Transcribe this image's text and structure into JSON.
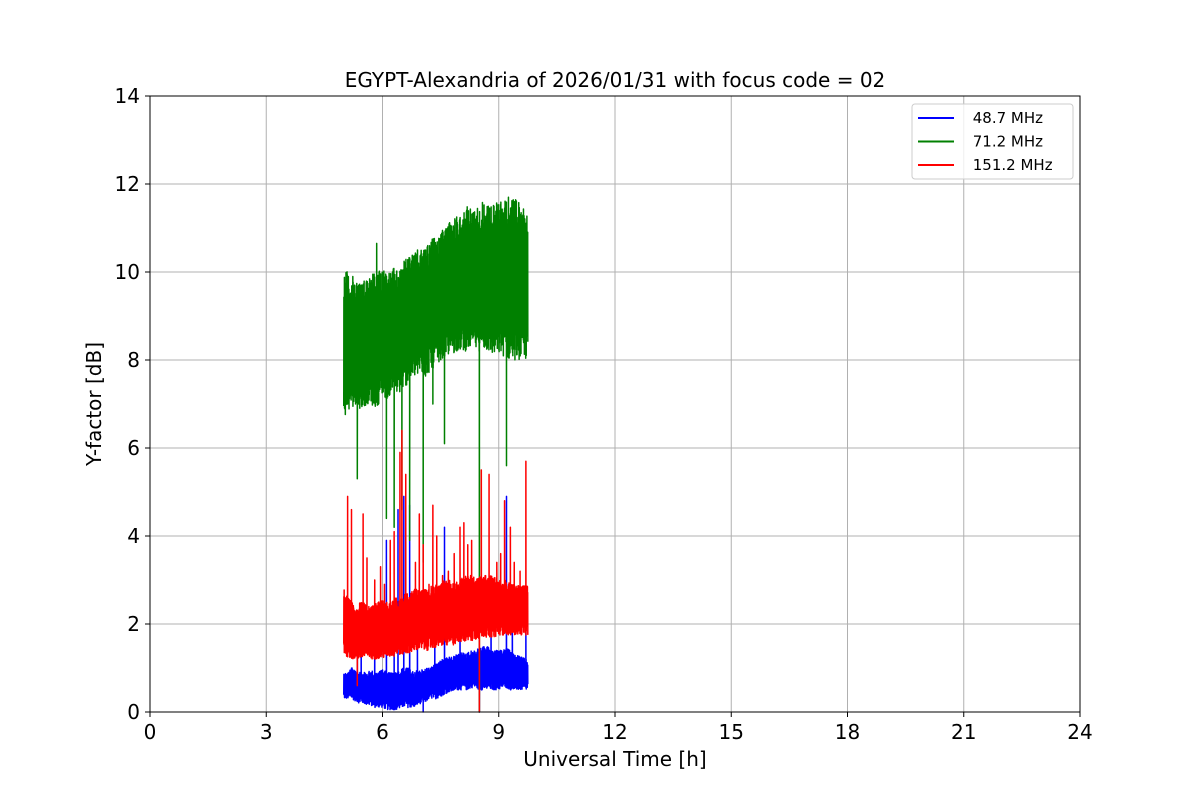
{
  "chart_data": {
    "type": "line",
    "title": "EGYPT-Alexandria of 2026/01/31 with focus code = 02",
    "xlabel": "Universal Time [h]",
    "ylabel": "Y-factor [dB]",
    "xlim": [
      0,
      24
    ],
    "ylim": [
      0,
      14
    ],
    "xticks": [
      0,
      3,
      6,
      9,
      12,
      15,
      18,
      21,
      24
    ],
    "yticks": [
      0,
      2,
      4,
      6,
      8,
      10,
      12,
      14
    ],
    "grid": true,
    "legend_position": "top-right",
    "series": [
      {
        "name": " 48.7 MHz",
        "color": "#0000ff",
        "x": [
          5.0,
          5.1,
          5.2,
          5.3,
          5.4,
          5.5,
          5.6,
          5.7,
          5.8,
          5.9,
          6.0,
          6.1,
          6.2,
          6.3,
          6.4,
          6.5,
          6.6,
          6.7,
          6.8,
          6.9,
          7.0,
          7.1,
          7.2,
          7.3,
          7.4,
          7.5,
          7.6,
          7.7,
          7.8,
          7.9,
          8.0,
          8.1,
          8.2,
          8.3,
          8.4,
          8.5,
          8.6,
          8.7,
          8.8,
          8.9,
          9.0,
          9.1,
          9.2,
          9.3,
          9.4,
          9.5,
          9.6,
          9.7,
          9.75
        ],
        "low": [
          0.3,
          0.3,
          0.3,
          0.25,
          0.2,
          0.2,
          0.15,
          0.15,
          0.1,
          0.1,
          0.1,
          0.05,
          0.05,
          0.05,
          0.05,
          0.1,
          0.1,
          0.1,
          0.1,
          0.15,
          0.2,
          0.2,
          0.3,
          0.3,
          0.3,
          0.35,
          0.4,
          0.45,
          0.45,
          0.5,
          0.5,
          0.5,
          0.5,
          0.55,
          0.55,
          0.5,
          0.5,
          0.5,
          0.5,
          0.5,
          0.5,
          0.55,
          0.55,
          0.5,
          0.5,
          0.5,
          0.5,
          0.5,
          0.5
        ],
        "high": [
          0.9,
          0.9,
          1.0,
          1.0,
          0.9,
          0.9,
          0.9,
          0.95,
          0.9,
          0.9,
          1.0,
          0.9,
          0.9,
          0.9,
          0.9,
          1.0,
          1.0,
          1.0,
          0.9,
          0.95,
          0.95,
          1.0,
          1.0,
          1.05,
          1.1,
          1.2,
          1.2,
          1.25,
          1.25,
          1.3,
          1.35,
          1.35,
          1.35,
          1.4,
          1.4,
          1.45,
          1.5,
          1.5,
          1.45,
          1.4,
          1.4,
          1.4,
          1.45,
          1.4,
          1.3,
          1.3,
          1.25,
          1.2,
          1.2
        ],
        "spikes": [
          [
            5.35,
            2.3
          ],
          [
            5.45,
            1.8
          ],
          [
            5.8,
            1.6
          ],
          [
            6.1,
            3.9
          ],
          [
            6.3,
            1.8
          ],
          [
            6.4,
            4.6
          ],
          [
            6.55,
            4.9
          ],
          [
            6.7,
            4.7
          ],
          [
            6.9,
            1.9
          ],
          [
            7.05,
            0.0
          ],
          [
            7.35,
            1.9
          ],
          [
            7.6,
            4.2
          ],
          [
            8.0,
            2.4
          ],
          [
            8.5,
            0.0
          ],
          [
            8.8,
            2.5
          ],
          [
            9.2,
            4.9
          ],
          [
            9.35,
            2.3
          ],
          [
            9.7,
            2.0
          ]
        ]
      },
      {
        "name": " 71.2 MHz",
        "color": "#008000",
        "x": [
          5.0,
          5.1,
          5.2,
          5.3,
          5.4,
          5.5,
          5.6,
          5.7,
          5.8,
          5.9,
          6.0,
          6.1,
          6.2,
          6.3,
          6.4,
          6.5,
          6.6,
          6.7,
          6.8,
          6.9,
          7.0,
          7.1,
          7.2,
          7.3,
          7.4,
          7.5,
          7.6,
          7.7,
          7.8,
          7.9,
          8.0,
          8.1,
          8.2,
          8.3,
          8.4,
          8.5,
          8.6,
          8.7,
          8.8,
          8.9,
          9.0,
          9.1,
          9.2,
          9.3,
          9.4,
          9.5,
          9.6,
          9.7,
          9.75
        ],
        "low": [
          6.7,
          6.8,
          6.9,
          7.0,
          6.9,
          6.9,
          7.0,
          7.0,
          6.9,
          7.0,
          7.2,
          7.1,
          7.2,
          7.3,
          7.2,
          7.3,
          7.4,
          7.5,
          7.6,
          7.6,
          7.7,
          7.6,
          7.7,
          7.8,
          7.9,
          8.0,
          8.0,
          8.1,
          8.1,
          8.2,
          8.2,
          8.2,
          8.2,
          8.3,
          8.2,
          8.2,
          8.2,
          8.2,
          8.1,
          8.1,
          8.1,
          8.1,
          8.0,
          8.0,
          8.0,
          8.0,
          8.0,
          8.0,
          8.0
        ],
        "high": [
          10.1,
          10.0,
          9.9,
          9.9,
          9.8,
          9.8,
          9.9,
          10.0,
          10.0,
          10.0,
          10.2,
          10.0,
          10.0,
          10.1,
          10.0,
          10.2,
          10.3,
          10.4,
          10.4,
          10.5,
          10.5,
          10.6,
          10.7,
          10.8,
          10.7,
          10.9,
          11.0,
          11.1,
          11.2,
          11.3,
          11.3,
          11.4,
          11.5,
          11.5,
          11.4,
          11.6,
          11.6,
          11.6,
          11.5,
          11.6,
          11.6,
          11.7,
          11.6,
          11.6,
          11.7,
          11.6,
          11.5,
          11.5,
          11.4
        ],
        "spikes": [
          [
            5.35,
            5.3
          ],
          [
            5.85,
            10.65
          ],
          [
            6.1,
            4.4
          ],
          [
            6.3,
            4.2
          ],
          [
            6.5,
            4.6
          ],
          [
            6.7,
            3.9
          ],
          [
            7.05,
            3.4
          ],
          [
            7.3,
            7.0
          ],
          [
            7.6,
            6.1
          ],
          [
            8.5,
            0.0
          ],
          [
            9.2,
            5.6
          ],
          [
            9.25,
            11.7
          ]
        ]
      },
      {
        "name": " 151.2 MHz",
        "color": "#ff0000",
        "x": [
          5.0,
          5.1,
          5.2,
          5.3,
          5.4,
          5.5,
          5.6,
          5.7,
          5.8,
          5.9,
          6.0,
          6.1,
          6.2,
          6.3,
          6.4,
          6.5,
          6.6,
          6.7,
          6.8,
          6.9,
          7.0,
          7.1,
          7.2,
          7.3,
          7.4,
          7.5,
          7.6,
          7.7,
          7.8,
          7.9,
          8.0,
          8.1,
          8.2,
          8.3,
          8.4,
          8.5,
          8.6,
          8.7,
          8.8,
          8.9,
          9.0,
          9.1,
          9.2,
          9.3,
          9.4,
          9.5,
          9.6,
          9.7,
          9.75
        ],
        "low": [
          1.3,
          1.25,
          1.2,
          1.2,
          1.2,
          1.2,
          1.2,
          1.2,
          1.2,
          1.2,
          1.2,
          1.25,
          1.25,
          1.25,
          1.3,
          1.3,
          1.3,
          1.35,
          1.35,
          1.4,
          1.4,
          1.4,
          1.4,
          1.45,
          1.45,
          1.5,
          1.5,
          1.5,
          1.5,
          1.55,
          1.6,
          1.6,
          1.6,
          1.6,
          1.65,
          1.65,
          1.7,
          1.7,
          1.7,
          1.7,
          1.75,
          1.75,
          1.75,
          1.75,
          1.75,
          1.75,
          1.75,
          1.75,
          1.7
        ],
        "high": [
          2.9,
          2.6,
          2.5,
          2.4,
          2.5,
          2.5,
          2.4,
          2.4,
          2.5,
          2.5,
          2.6,
          2.5,
          2.5,
          2.6,
          2.6,
          2.6,
          2.7,
          2.7,
          2.8,
          2.8,
          2.8,
          2.8,
          2.8,
          2.9,
          2.9,
          2.9,
          3.0,
          3.0,
          3.0,
          3.0,
          3.0,
          3.1,
          3.1,
          3.1,
          3.1,
          3.1,
          3.1,
          3.1,
          3.1,
          3.1,
          3.0,
          3.0,
          3.0,
          2.9,
          2.9,
          2.9,
          2.9,
          2.9,
          2.9
        ],
        "spikes": [
          [
            5.1,
            4.9
          ],
          [
            5.2,
            4.6
          ],
          [
            5.35,
            0.6
          ],
          [
            5.5,
            4.5
          ],
          [
            5.6,
            3.5
          ],
          [
            5.8,
            3.0
          ],
          [
            5.95,
            3.3
          ],
          [
            6.05,
            2.9
          ],
          [
            6.2,
            3.9
          ],
          [
            6.3,
            4.1
          ],
          [
            6.45,
            5.9
          ],
          [
            6.5,
            6.4
          ],
          [
            6.6,
            5.4
          ],
          [
            6.7,
            2.0
          ],
          [
            6.85,
            3.4
          ],
          [
            6.95,
            4.5
          ],
          [
            7.05,
            3.8
          ],
          [
            7.2,
            2.9
          ],
          [
            7.3,
            4.7
          ],
          [
            7.4,
            4.0
          ],
          [
            7.55,
            3.1
          ],
          [
            7.7,
            3.2
          ],
          [
            7.85,
            3.6
          ],
          [
            8.0,
            4.2
          ],
          [
            8.1,
            4.3
          ],
          [
            8.2,
            3.8
          ],
          [
            8.3,
            3.9
          ],
          [
            8.5,
            0.0
          ],
          [
            8.55,
            5.5
          ],
          [
            8.75,
            5.4
          ],
          [
            8.95,
            3.4
          ],
          [
            9.05,
            3.6
          ],
          [
            9.15,
            4.8
          ],
          [
            9.3,
            4.2
          ],
          [
            9.4,
            3.4
          ],
          [
            9.55,
            3.2
          ],
          [
            9.7,
            5.7
          ]
        ]
      }
    ]
  }
}
